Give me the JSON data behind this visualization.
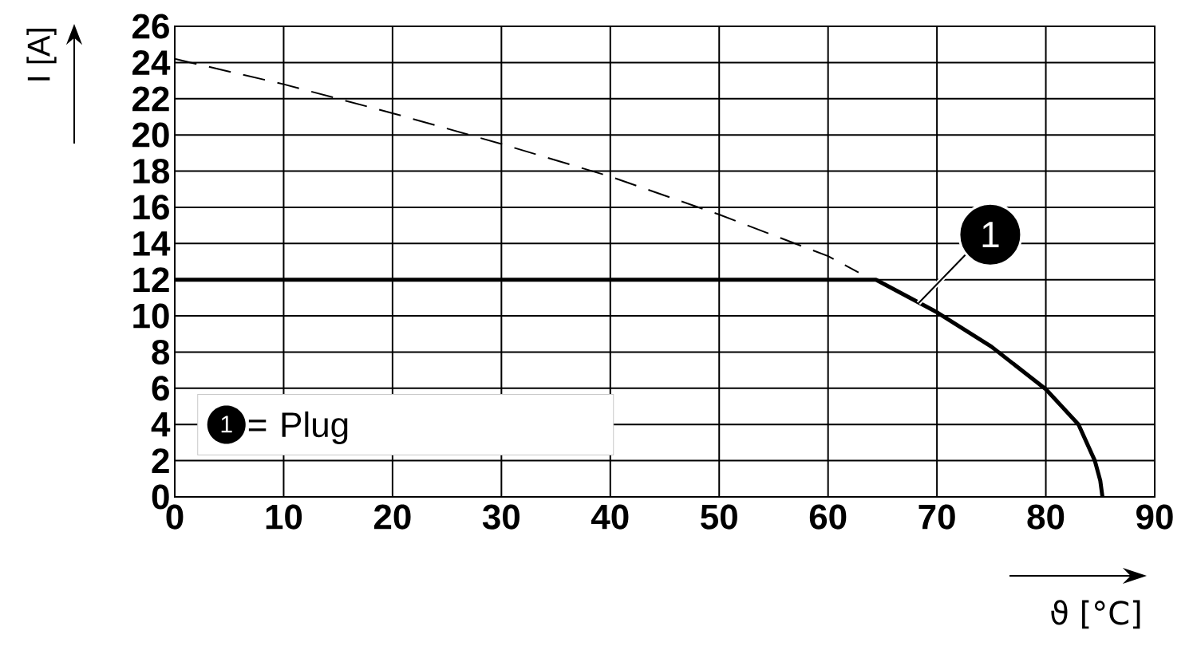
{
  "chart_data": {
    "type": "line",
    "xlabel": "ϑ [°C]",
    "ylabel": "I [A]",
    "xlim": [
      0,
      90
    ],
    "xticks": [
      0,
      10,
      20,
      30,
      40,
      50,
      60,
      70,
      80,
      90
    ],
    "ylim": [
      0,
      26
    ],
    "yticks": [
      0,
      2,
      4,
      6,
      8,
      10,
      12,
      14,
      16,
      18,
      20,
      22,
      24,
      26
    ],
    "grid": true,
    "marker": "none",
    "legend": "bottom left",
    "series": [
      {
        "color": "#000000",
        "line_style": "dashed",
        "x": [
          0,
          10,
          20,
          30,
          40,
          50,
          60,
          62.8
        ],
        "values": [
          24.2,
          22.8,
          21.2,
          19.5,
          17.7,
          15.6,
          13.3,
          12.4
        ]
      },
      {
        "name": "= Plug",
        "color": "#000000",
        "line_style": "solid",
        "x": [
          0,
          64.4,
          70,
          75,
          80,
          83,
          84.5,
          85,
          85.2
        ],
        "values": [
          12,
          12,
          10.2,
          8.3,
          5.95,
          4.0,
          2.0,
          0.9,
          0
        ]
      }
    ],
    "annotations": [
      {
        "text": "1",
        "x": 68.3,
        "y": 10.7
      },
      "1"
    ]
  }
}
